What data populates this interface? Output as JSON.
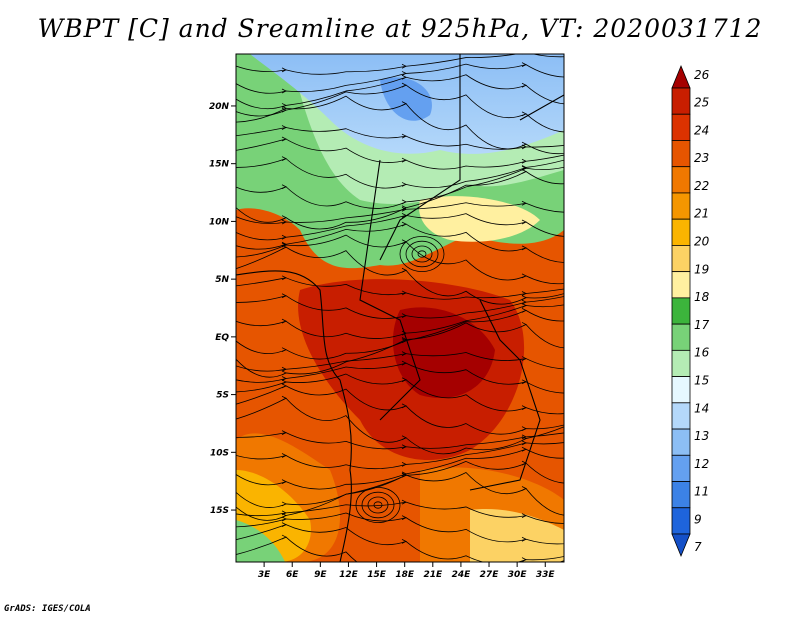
{
  "title": "WBPT [C] and Sreamline at 925hPa, VT: 2020031712",
  "credit": "GrADS: IGES/COLA",
  "map": {
    "lat_ticks": [
      {
        "label": "20N",
        "value": 20
      },
      {
        "label": "15N",
        "value": 15
      },
      {
        "label": "10N",
        "value": 10
      },
      {
        "label": "5N",
        "value": 5
      },
      {
        "label": "EQ",
        "value": 0
      },
      {
        "label": "5S",
        "value": -5
      },
      {
        "label": "10S",
        "value": -10
      },
      {
        "label": "15S",
        "value": -15
      }
    ],
    "lon_ticks": [
      {
        "label": "3E",
        "value": 3
      },
      {
        "label": "6E",
        "value": 6
      },
      {
        "label": "9E",
        "value": 9
      },
      {
        "label": "12E",
        "value": 12
      },
      {
        "label": "15E",
        "value": 15
      },
      {
        "label": "18E",
        "value": 18
      },
      {
        "label": "21E",
        "value": 21
      },
      {
        "label": "24E",
        "value": 24
      },
      {
        "label": "27E",
        "value": 27
      },
      {
        "label": "30E",
        "value": 30
      },
      {
        "label": "33E",
        "value": 33
      }
    ],
    "lon_range": [
      0,
      35
    ],
    "lat_range": [
      -19.5,
      24.5
    ]
  },
  "colorbar": {
    "levels": [
      "26",
      "25",
      "24",
      "23",
      "22",
      "21",
      "20",
      "19",
      "18",
      "17",
      "16",
      "15",
      "14",
      "13",
      "12",
      "11",
      "9",
      "7"
    ],
    "colors": [
      "#a50000",
      "#c81e00",
      "#dc3200",
      "#e65500",
      "#f07800",
      "#f59600",
      "#fab400",
      "#fcd264",
      "#fff0a0",
      "#3cb43c",
      "#78d278",
      "#b4ecb4",
      "#e6f8ff",
      "#b4d8fa",
      "#8cbef5",
      "#64a0f0",
      "#3c82e6",
      "#1e64dc",
      "#1450c8"
    ]
  }
}
